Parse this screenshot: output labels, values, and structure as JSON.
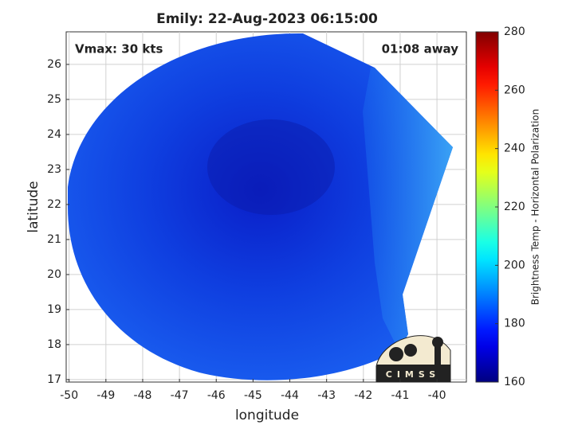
{
  "chart_data": {
    "type": "heatmap",
    "title": "Emily: 22-Aug-2023 06:15:00",
    "annotations": [
      "Vmax: 30 kts",
      "01:08 away"
    ],
    "xlabel": "longitude",
    "ylabel": "latitude",
    "xlim": [
      -50.08,
      -39.2
    ],
    "ylim": [
      16.93,
      26.93
    ],
    "xticks": [
      -50,
      -49,
      -48,
      -47,
      -46,
      -45,
      -44,
      -43,
      -42,
      -41,
      -40
    ],
    "yticks": [
      17,
      18,
      19,
      20,
      21,
      22,
      23,
      24,
      25,
      26
    ],
    "grid": true,
    "colorbar": {
      "label": "Brightness Temp - Horizontal Polarization",
      "colormap": "jet",
      "lim": [
        160,
        280
      ],
      "ticks": [
        160,
        180,
        200,
        220,
        240,
        260,
        280
      ]
    },
    "logo": "CIMSS"
  }
}
